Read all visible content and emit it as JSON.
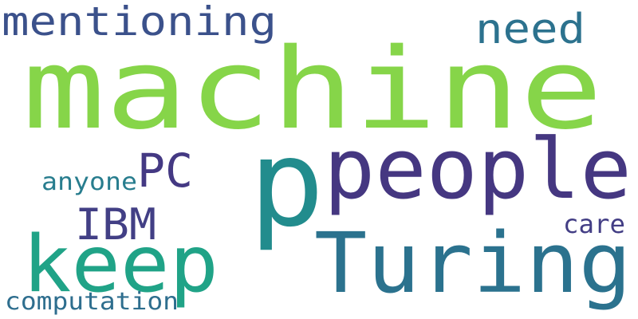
{
  "words": [
    {
      "id": "machine",
      "text": "machine",
      "color": "#86d549"
    },
    {
      "id": "p",
      "text": "p",
      "color": "#228c8d"
    },
    {
      "id": "people",
      "text": "people",
      "color": "#453781"
    },
    {
      "id": "turing",
      "text": "Turing",
      "color": "#2b728e"
    },
    {
      "id": "keep",
      "text": "keep",
      "color": "#20a387"
    },
    {
      "id": "mentioning",
      "text": "mentioning",
      "color": "#3b518b"
    },
    {
      "id": "need",
      "text": "need",
      "color": "#2c728e"
    },
    {
      "id": "pc",
      "text": "PC",
      "color": "#443983"
    },
    {
      "id": "ibm",
      "text": "IBM",
      "color": "#423f85"
    },
    {
      "id": "anyone",
      "text": "anyone",
      "color": "#287d8e"
    },
    {
      "id": "care",
      "text": "care",
      "color": "#433e85"
    },
    {
      "id": "computation",
      "text": "computation",
      "color": "#2e6e8e"
    }
  ]
}
